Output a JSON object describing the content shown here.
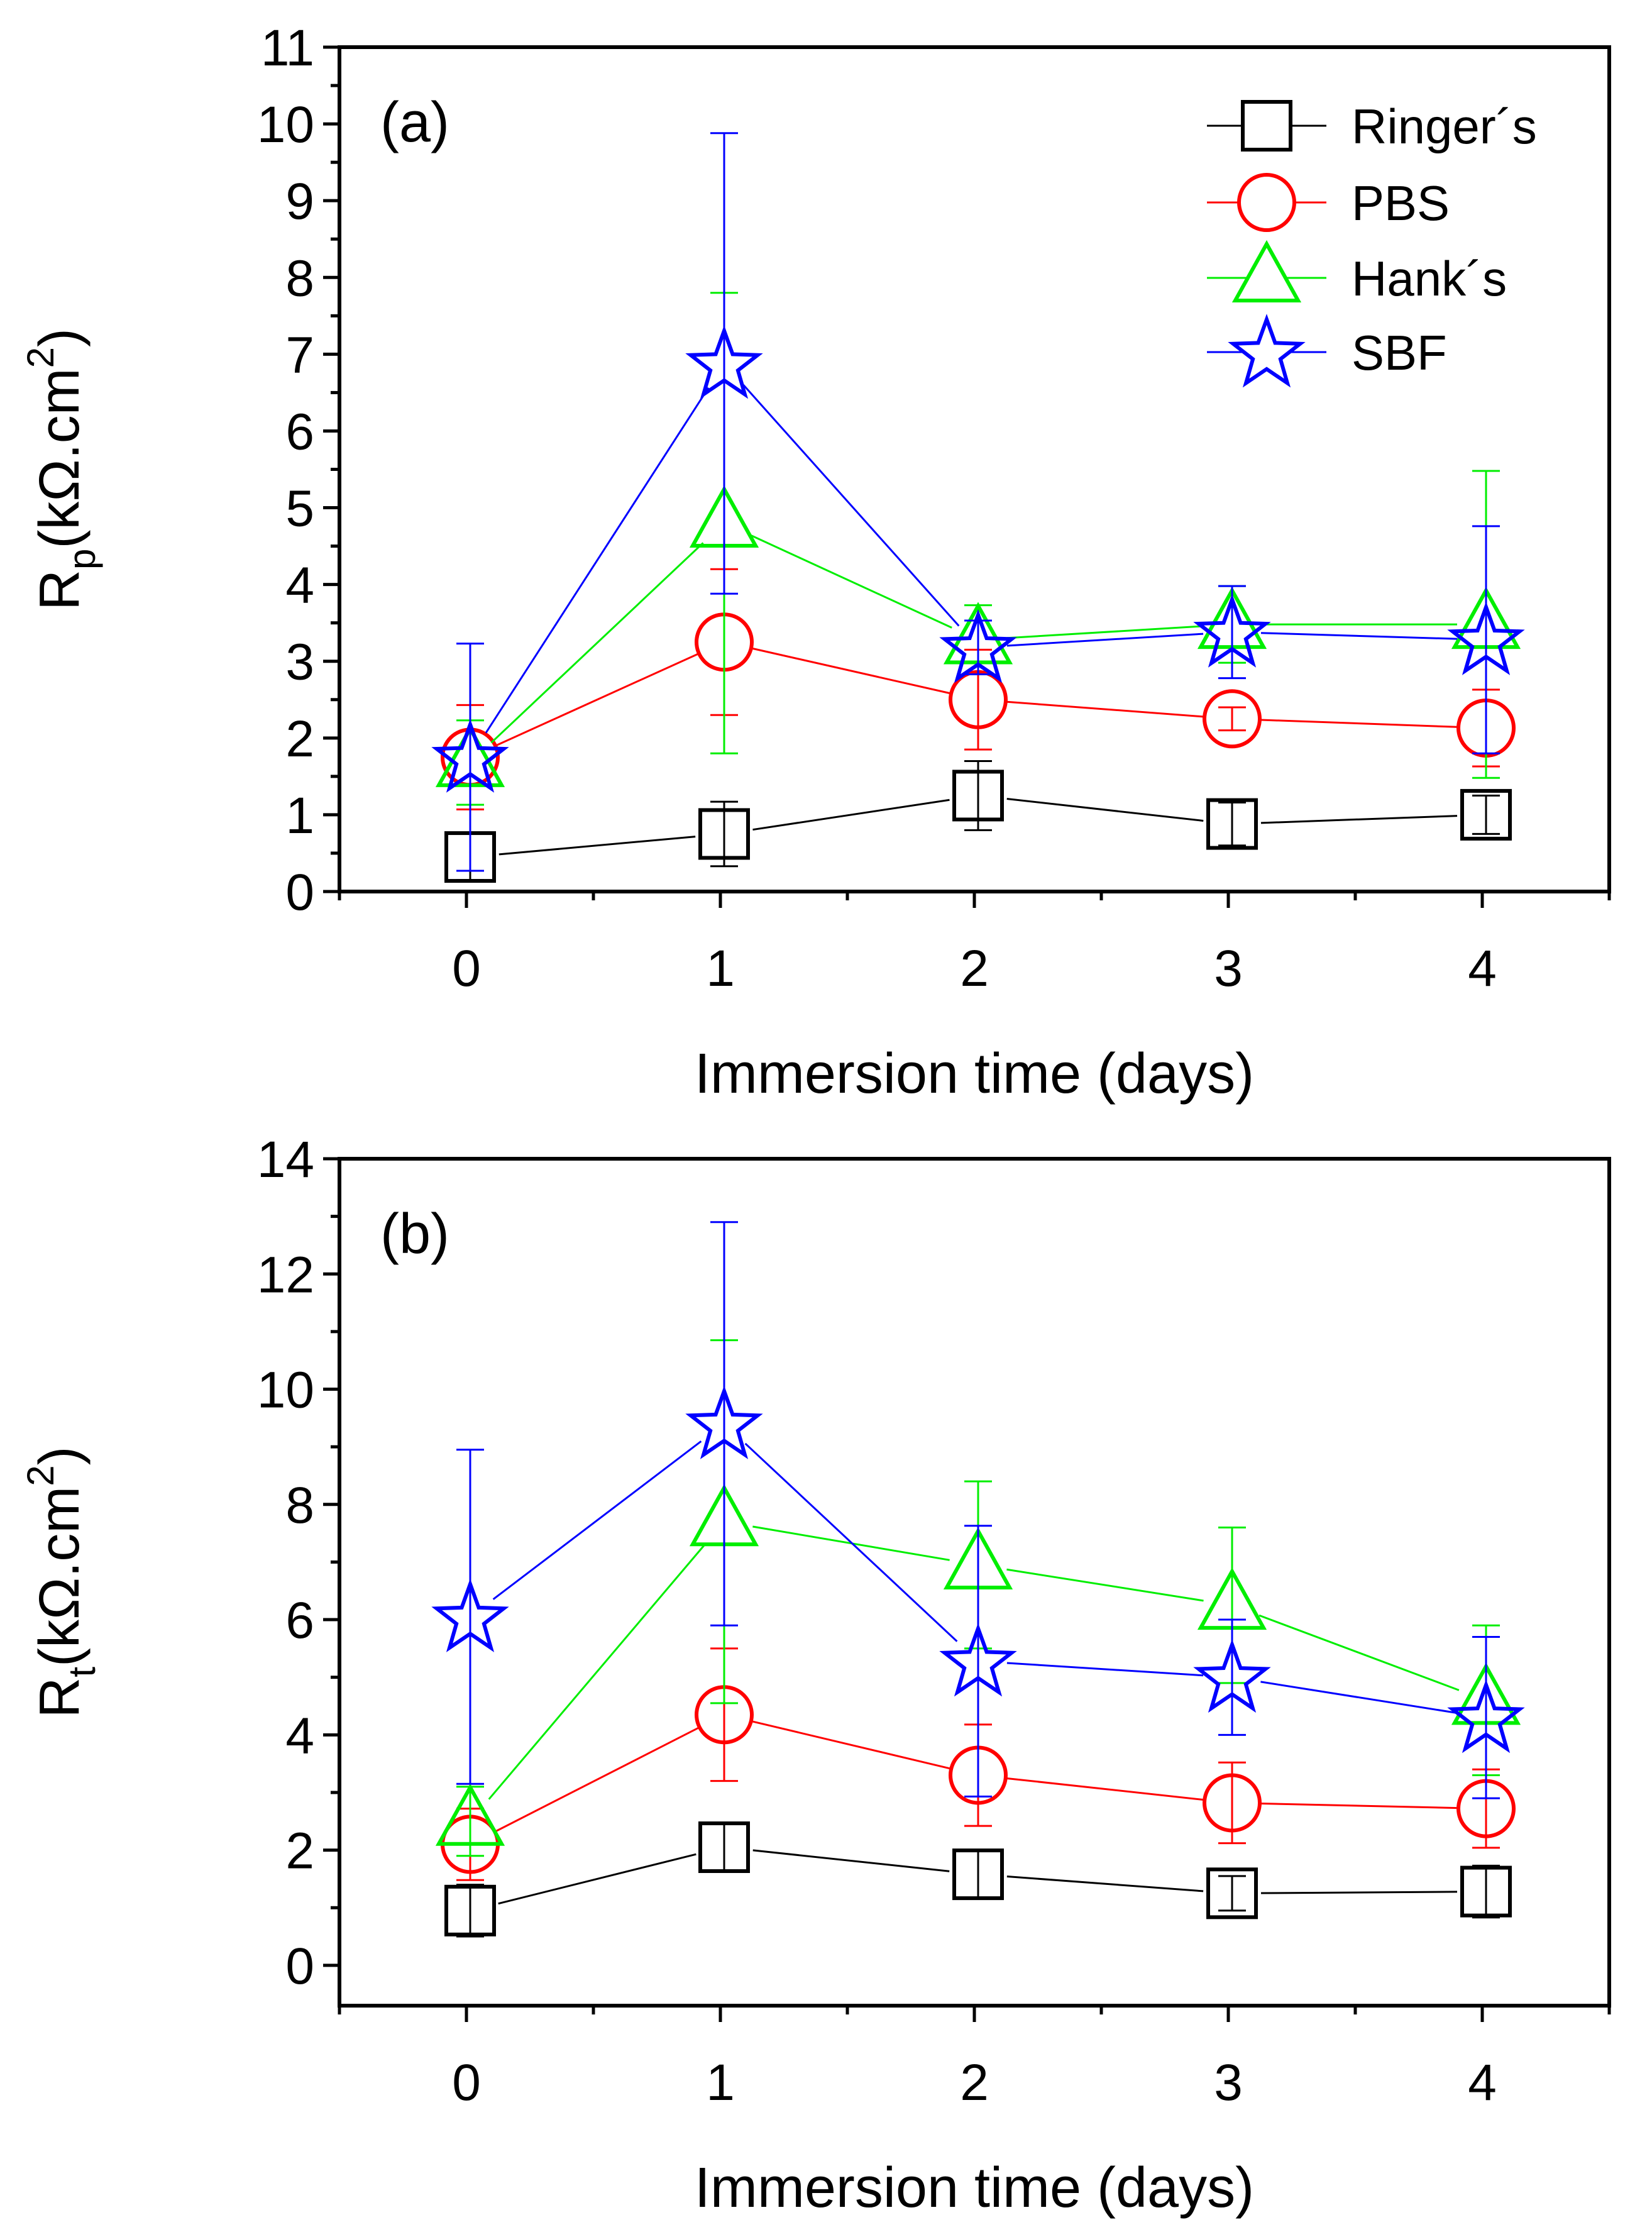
{
  "chart_data": [
    {
      "type": "line",
      "panel_label": "(a)",
      "xlabel": "Immersion time (days)",
      "ylabel_main": "R",
      "ylabel_sub": "p",
      "ylabel_rest": "(kΩ.cm",
      "ylabel_sup": "2",
      "ylabel_close": ")",
      "x": [
        0,
        1,
        2,
        3,
        4
      ],
      "xlim": [
        -0.5,
        4.5
      ],
      "ylim": [
        0,
        11
      ],
      "yticks": [
        0,
        1,
        2,
        3,
        4,
        5,
        6,
        7,
        8,
        9,
        10,
        11
      ],
      "xticks": [
        0,
        1,
        2,
        3,
        4
      ],
      "legend_position": "top-right",
      "series": [
        {
          "name": "Ringer´s",
          "marker": "square",
          "color": "#000000",
          "values": [
            0.45,
            0.75,
            1.25,
            0.88,
            1.0
          ],
          "err": [
            0.3,
            0.42,
            0.45,
            0.28,
            0.25
          ]
        },
        {
          "name": "PBS",
          "marker": "circle",
          "color": "#ff0000",
          "values": [
            1.75,
            3.25,
            2.5,
            2.25,
            2.13
          ],
          "err": [
            0.68,
            0.95,
            0.65,
            0.15,
            0.5
          ]
        },
        {
          "name": "Hank´s",
          "marker": "triangle",
          "color": "#00ee00",
          "values": [
            1.68,
            4.8,
            3.28,
            3.48,
            3.48
          ],
          "err": [
            0.55,
            3.0,
            0.45,
            0.5,
            2.0
          ]
        },
        {
          "name": "SBF",
          "marker": "star",
          "color": "#0000ff",
          "values": [
            1.75,
            6.88,
            3.18,
            3.38,
            3.28
          ],
          "err": [
            1.48,
            3.0,
            0.35,
            0.6,
            1.48
          ]
        }
      ]
    },
    {
      "type": "line",
      "panel_label": "(b)",
      "xlabel": "Immersion time (days)",
      "ylabel_main": "R",
      "ylabel_sub": "t",
      "ylabel_rest": "(kΩ.cm",
      "ylabel_sup": "2",
      "ylabel_close": ")",
      "x": [
        0,
        1,
        2,
        3,
        4
      ],
      "xlim": [
        -0.5,
        4.5
      ],
      "ylim": [
        -0.7,
        14
      ],
      "yticks": [
        0,
        2,
        4,
        6,
        8,
        10,
        12,
        14
      ],
      "xticks": [
        0,
        1,
        2,
        3,
        4
      ],
      "legend_position": "none",
      "series": [
        {
          "name": "Ringer´s",
          "marker": "square",
          "color": "#000000",
          "values": [
            0.95,
            2.05,
            1.58,
            1.25,
            1.28
          ],
          "err": [
            0.45,
            0.4,
            0.42,
            0.3,
            0.45
          ]
        },
        {
          "name": "PBS",
          "marker": "circle",
          "color": "#ff0000",
          "values": [
            2.1,
            4.35,
            3.3,
            2.82,
            2.72
          ],
          "err": [
            0.62,
            1.15,
            0.88,
            0.7,
            0.68
          ]
        },
        {
          "name": "Hank´s",
          "marker": "triangle",
          "color": "#00ee00",
          "values": [
            2.5,
            7.7,
            6.95,
            6.25,
            4.6
          ],
          "err": [
            0.6,
            3.15,
            1.45,
            1.35,
            1.3
          ]
        },
        {
          "name": "SBF",
          "marker": "star",
          "color": "#0000ff",
          "values": [
            6.05,
            9.4,
            5.28,
            5.0,
            4.3
          ],
          "err": [
            2.9,
            3.5,
            2.35,
            1.0,
            1.4
          ]
        }
      ]
    }
  ]
}
